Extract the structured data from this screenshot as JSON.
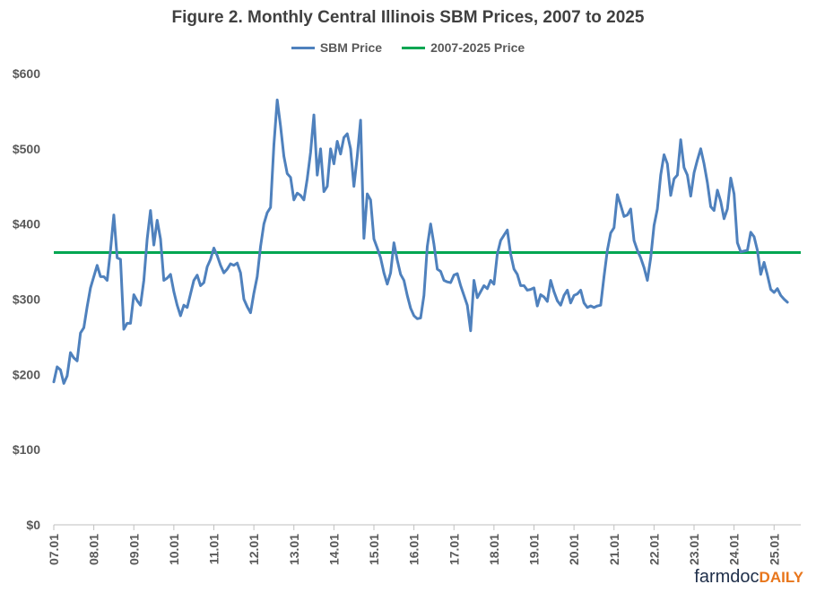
{
  "chart_data": {
    "type": "line",
    "title": "Figure 2.  Monthly Central Illinois SBM Prices, 2007 to 2025",
    "xlabel": "",
    "ylabel": "",
    "ylim": [
      0,
      600
    ],
    "y_tick_labels": [
      "$0",
      "$100",
      "$200",
      "$300",
      "$400",
      "$500",
      "$600"
    ],
    "y_ticks": [
      0,
      100,
      200,
      300,
      400,
      500,
      600
    ],
    "x_tick_labels": [
      "07.01",
      "08.01",
      "09.01",
      "10.01",
      "11.01",
      "12.01",
      "13.01",
      "14.01",
      "15.01",
      "16.01",
      "17.01",
      "18.01",
      "19.01",
      "20.01",
      "21.01",
      "22.01",
      "23.01",
      "24.01",
      "25.01"
    ],
    "x_tick_index": [
      0,
      12,
      24,
      36,
      48,
      60,
      72,
      84,
      96,
      108,
      120,
      132,
      144,
      156,
      168,
      180,
      192,
      204,
      216
    ],
    "legend_position": "top",
    "gridlines": false,
    "series": [
      {
        "name": "SBM Price",
        "color": "#4f81bd",
        "values": [
          190,
          210,
          206,
          188,
          198,
          229,
          222,
          218,
          255,
          262,
          290,
          315,
          330,
          345,
          330,
          330,
          325,
          365,
          412,
          355,
          353,
          260,
          268,
          268,
          306,
          298,
          292,
          325,
          380,
          418,
          372,
          405,
          380,
          325,
          328,
          333,
          310,
          292,
          278,
          292,
          289,
          307,
          325,
          332,
          318,
          322,
          343,
          353,
          368,
          358,
          345,
          335,
          340,
          347,
          345,
          348,
          335,
          300,
          290,
          282,
          308,
          330,
          370,
          400,
          415,
          422,
          505,
          565,
          530,
          490,
          467,
          462,
          432,
          441,
          438,
          432,
          460,
          495,
          545,
          465,
          500,
          443,
          450,
          500,
          480,
          510,
          493,
          515,
          520,
          500,
          450,
          490,
          538,
          381,
          440,
          432,
          380,
          368,
          355,
          335,
          320,
          335,
          375,
          352,
          333,
          325,
          305,
          288,
          278,
          274,
          275,
          305,
          370,
          400,
          373,
          340,
          337,
          325,
          323,
          322,
          332,
          334,
          318,
          305,
          292,
          258,
          325,
          302,
          310,
          318,
          314,
          325,
          320,
          360,
          378,
          385,
          392,
          360,
          340,
          333,
          318,
          318,
          312,
          313,
          315,
          291,
          306,
          303,
          297,
          325,
          310,
          298,
          292,
          305,
          312,
          295,
          305,
          307,
          312,
          295,
          289,
          291,
          289,
          291,
          292,
          330,
          365,
          388,
          395,
          439,
          425,
          410,
          412,
          420,
          378,
          365,
          355,
          342,
          325,
          355,
          398,
          420,
          465,
          492,
          480,
          438,
          460,
          465,
          512,
          475,
          465,
          437,
          468,
          485,
          500,
          480,
          455,
          423,
          418,
          445,
          430,
          407,
          420,
          461,
          440,
          375,
          363,
          364,
          365,
          389,
          383,
          365,
          333,
          349,
          332,
          313,
          309,
          314,
          305,
          300,
          296
        ]
      },
      {
        "name": "2007-2025 Price",
        "color": "#00a651",
        "values": [
          362
        ]
      }
    ]
  },
  "logo": {
    "farm": "farmdoc",
    "daily": "DAILY"
  }
}
